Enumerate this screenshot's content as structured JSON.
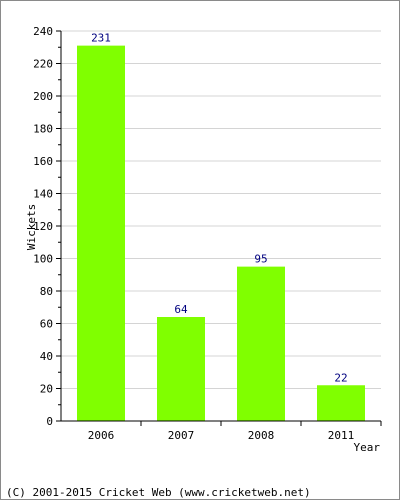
{
  "chart_data": {
    "type": "bar",
    "categories": [
      "2006",
      "2007",
      "2008",
      "2011"
    ],
    "values": [
      231,
      64,
      95,
      22
    ],
    "data_labels": [
      "231",
      "64",
      "95",
      "22"
    ],
    "title": "",
    "xlabel": "Year",
    "ylabel": "Wickets",
    "ylim": [
      0,
      240
    ],
    "yticks": [
      0,
      20,
      40,
      60,
      80,
      100,
      120,
      140,
      160,
      180,
      200,
      220,
      240
    ],
    "ytick_labels": [
      "0",
      "20",
      "40",
      "60",
      "80",
      "100",
      "120",
      "140",
      "160",
      "180",
      "200",
      "220",
      "240"
    ],
    "grid": true,
    "legend": "none",
    "colors": {
      "bar": "#80ff00",
      "data_label": "#000080",
      "grid": "#d4d4d4",
      "axis": "#000000"
    }
  },
  "footer": {
    "copyright": "(C) 2001-2015 Cricket Web (www.cricketweb.net)"
  }
}
